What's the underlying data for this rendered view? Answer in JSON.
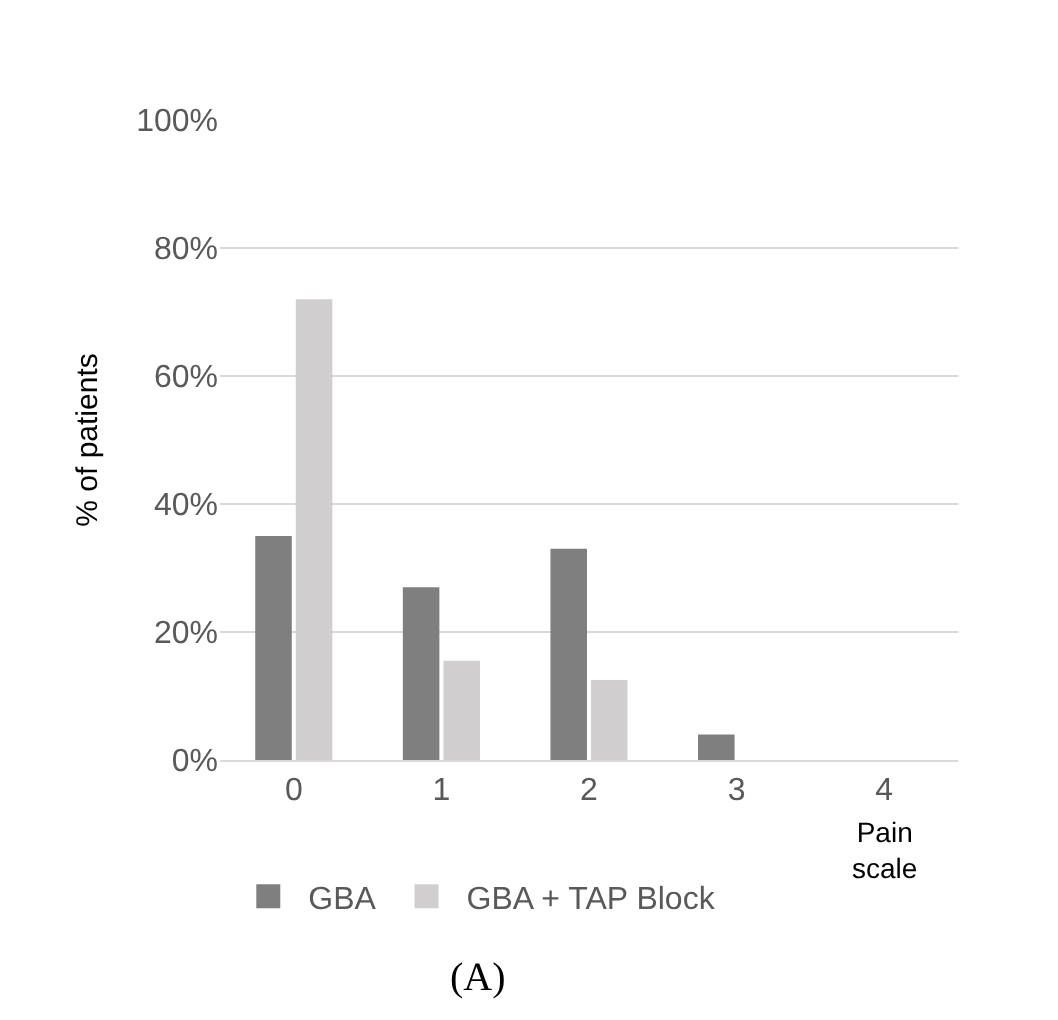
{
  "chart_data": {
    "type": "bar",
    "ylabel": "% of patients",
    "xlabel": "Pain scale",
    "categories": [
      "0",
      "1",
      "2",
      "3",
      "4"
    ],
    "series": [
      {
        "name": "GBA",
        "color": "#7f7f7f",
        "values": [
          35,
          27,
          33,
          4,
          0
        ]
      },
      {
        "name": "GBA + TAP Block",
        "color": "#d0cece",
        "values": [
          72,
          15.5,
          12.5,
          0,
          0
        ]
      }
    ],
    "ylim": [
      0,
      100
    ],
    "yticks": [
      {
        "value": 0,
        "label": "0%"
      },
      {
        "value": 20,
        "label": "20%"
      },
      {
        "value": 40,
        "label": "40%"
      },
      {
        "value": 60,
        "label": "60%"
      },
      {
        "value": 80,
        "label": "80%"
      },
      {
        "value": 100,
        "label": "100%"
      }
    ],
    "grid": "y",
    "legend": "bottom",
    "annotations": [
      "(A)"
    ]
  }
}
